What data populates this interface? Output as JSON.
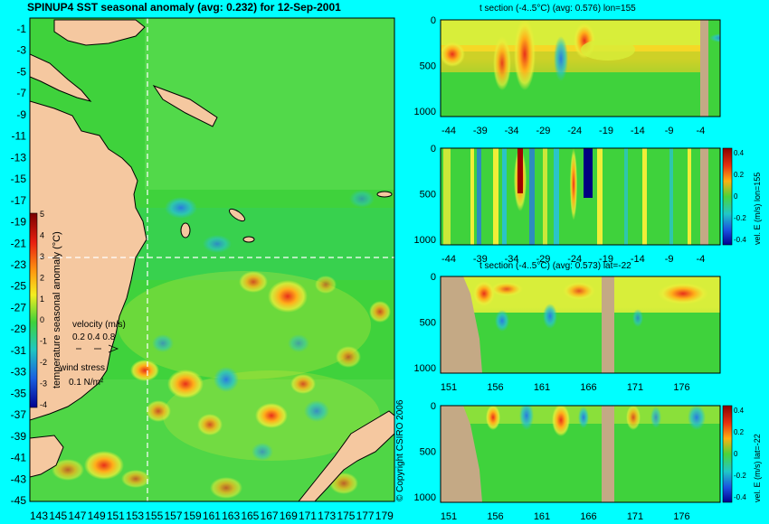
{
  "map": {
    "title": "SPINUP4 SST seasonal anomaly (avg: 0.232) for 12-Sep-2001",
    "ylabels": [
      "-1",
      "-3",
      "-5",
      "-7",
      "-9",
      "-11",
      "-13",
      "-15",
      "-17",
      "-19",
      "-21",
      "-23",
      "-25",
      "-27",
      "-29",
      "-31",
      "-33",
      "-35",
      "-37",
      "-39",
      "-41",
      "-43",
      "-45"
    ],
    "xlabels": [
      "143",
      "145",
      "147",
      "149",
      "151",
      "153",
      "155",
      "157",
      "159",
      "161",
      "163",
      "165",
      "167",
      "169",
      "171",
      "173",
      "175",
      "177",
      "179"
    ],
    "colorbar": {
      "label": "temperature seasonal anomaly (°C)",
      "ticks": [
        "5",
        "4",
        "3",
        "2",
        "1",
        "0",
        "-1",
        "-2",
        "-3",
        "-4"
      ],
      "range": [
        -4,
        5
      ]
    },
    "velocity_legend": {
      "title": "velocity (m/s)",
      "scale": "0.2 0.4 0.8"
    },
    "wind_legend": {
      "title": "wind stress",
      "scale": "0.1 N/m²"
    },
    "copyright": "© Copyright CSIRO 2006"
  },
  "chart_data": [
    {
      "type": "heatmap",
      "title": "SPINUP4 SST seasonal anomaly (avg: 0.232) for 12-Sep-2001",
      "x_ticks": [
        143,
        145,
        147,
        149,
        151,
        153,
        155,
        157,
        159,
        161,
        163,
        165,
        167,
        169,
        171,
        173,
        175,
        177,
        179
      ],
      "y_ticks": [
        -1,
        -3,
        -5,
        -7,
        -9,
        -11,
        -13,
        -15,
        -17,
        -19,
        -21,
        -23,
        -25,
        -27,
        -29,
        -31,
        -33,
        -35,
        -37,
        -39,
        -41,
        -43,
        -45
      ],
      "value_range": [
        -4,
        5
      ],
      "average": 0.232,
      "section_lines": {
        "lon": 155,
        "lat": -22
      }
    },
    {
      "type": "heatmap",
      "title": "t section (-4..5°C) (avg: 0.576) lon=155",
      "x_ticks": [
        -44,
        -39,
        -34,
        -29,
        -24,
        -19,
        -14,
        -9,
        -4
      ],
      "y_ticks": [
        0,
        500,
        1000
      ],
      "value_range": [
        -4,
        5
      ],
      "average": 0.576
    },
    {
      "type": "heatmap",
      "title": "vel. E (m/s) lon=155",
      "x_ticks": [
        -44,
        -39,
        -34,
        -29,
        -24,
        -19,
        -14,
        -9,
        -4
      ],
      "y_ticks": [
        0,
        500,
        1000
      ],
      "value_range": [
        -0.4,
        0.4
      ],
      "colorbar_ticks": [
        "0.4",
        "0.2",
        "0",
        "-0.2",
        "-0.4"
      ]
    },
    {
      "type": "heatmap",
      "title": "t section (-4..5°C) (avg: 0.573) lat=-22",
      "x_ticks": [
        151,
        156,
        161,
        166,
        171,
        176
      ],
      "y_ticks": [
        0,
        500,
        1000
      ],
      "value_range": [
        -4,
        5
      ],
      "average": 0.573
    },
    {
      "type": "heatmap",
      "title": "vel. E (m/s) lat=-22",
      "x_ticks": [
        151,
        156,
        161,
        166,
        171,
        176
      ],
      "y_ticks": [
        0,
        500,
        1000
      ],
      "value_range": [
        -0.4,
        0.4
      ],
      "colorbar_ticks": [
        "0.4",
        "0.2",
        "0",
        "-0.2",
        "-0.4"
      ]
    }
  ],
  "panels": {
    "p1": {
      "title": "t section (-4..5°C) (avg: 0.576) lon=155"
    },
    "p2": {
      "side_label": "vel. E (m/s) lon=155"
    },
    "p3": {
      "title": "t section (-4..5°C) (avg: 0.573) lat=-22"
    },
    "p4": {
      "side_label": "vel. E (m/s) lat=-22"
    }
  },
  "colors": {
    "background": "#00ffff",
    "land": "#f5c8a0",
    "sea_base": "#3fd23c",
    "section_land": "#c4a985"
  }
}
